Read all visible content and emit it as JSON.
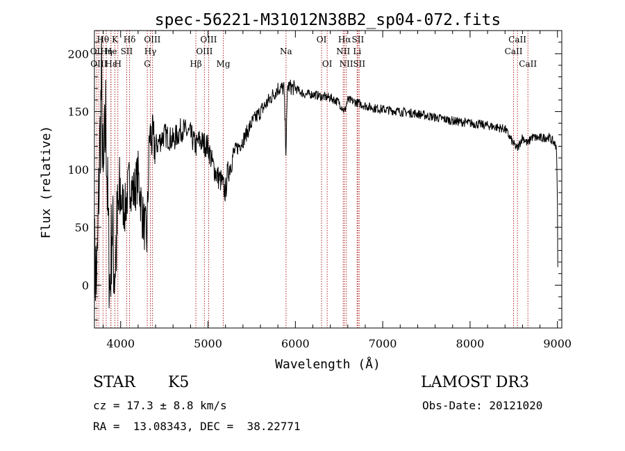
{
  "chart_data": {
    "type": "line",
    "title": "spec-56221-M31012N38B2_sp04-072.fits",
    "xlabel": "Wavelength (Å)",
    "ylabel": "Flux (relative)",
    "xlim": [
      3700,
      9050
    ],
    "ylim": [
      -37,
      220
    ],
    "x_ticks": [
      4000,
      5000,
      6000,
      7000,
      8000,
      9000
    ],
    "y_ticks": [
      0,
      50,
      100,
      150,
      200
    ],
    "grid": false,
    "line_color": "#000000",
    "spectral_line_color": "#b22222",
    "spectrum_anchors": [
      [
        3700,
        20
      ],
      [
        3730,
        5
      ],
      [
        3760,
        115
      ],
      [
        3780,
        175
      ],
      [
        3800,
        80
      ],
      [
        3830,
        150
      ],
      [
        3860,
        40
      ],
      [
        3880,
        -5
      ],
      [
        3900,
        55
      ],
      [
        3930,
        10
      ],
      [
        3970,
        60
      ],
      [
        4000,
        75
      ],
      [
        4050,
        65
      ],
      [
        4100,
        90
      ],
      [
        4150,
        80
      ],
      [
        4200,
        95
      ],
      [
        4250,
        60
      ],
      [
        4300,
        40
      ],
      [
        4330,
        130
      ],
      [
        4400,
        120
      ],
      [
        4500,
        130
      ],
      [
        4600,
        125
      ],
      [
        4700,
        135
      ],
      [
        4800,
        130
      ],
      [
        4860,
        120
      ],
      [
        4900,
        125
      ],
      [
        5000,
        120
      ],
      [
        5050,
        105
      ],
      [
        5100,
        95
      ],
      [
        5150,
        90
      ],
      [
        5200,
        80
      ],
      [
        5220,
        95
      ],
      [
        5300,
        115
      ],
      [
        5400,
        125
      ],
      [
        5500,
        140
      ],
      [
        5600,
        150
      ],
      [
        5700,
        160
      ],
      [
        5800,
        170
      ],
      [
        5870,
        170
      ],
      [
        5893,
        115
      ],
      [
        5910,
        172
      ],
      [
        6000,
        170
      ],
      [
        6100,
        165
      ],
      [
        6200,
        165
      ],
      [
        6300,
        163
      ],
      [
        6400,
        162
      ],
      [
        6500,
        158
      ],
      [
        6563,
        150
      ],
      [
        6600,
        160
      ],
      [
        6700,
        158
      ],
      [
        6800,
        155
      ],
      [
        6900,
        153
      ],
      [
        7000,
        152
      ],
      [
        7200,
        150
      ],
      [
        7400,
        148
      ],
      [
        7600,
        145
      ],
      [
        7800,
        142
      ],
      [
        8000,
        140
      ],
      [
        8200,
        138
      ],
      [
        8400,
        135
      ],
      [
        8498,
        122
      ],
      [
        8542,
        118
      ],
      [
        8600,
        128
      ],
      [
        8662,
        122
      ],
      [
        8700,
        128
      ],
      [
        8800,
        127
      ],
      [
        8900,
        128
      ],
      [
        8950,
        124
      ],
      [
        8990,
        120
      ],
      [
        9000,
        70
      ],
      [
        9005,
        2
      ]
    ],
    "spectral_lines": [
      {
        "label": "Hθ",
        "wavelength": 3798,
        "row": 0
      },
      {
        "label": "OII",
        "wavelength": 3727,
        "row": 1
      },
      {
        "label": "Hη",
        "wavelength": 3835,
        "row": 1
      },
      {
        "label": "OIII",
        "wavelength": 3750,
        "row": 2
      },
      {
        "label": "Hε",
        "wavelength": 3889,
        "row": 2
      },
      {
        "label": "K",
        "wavelength": 3934,
        "row": 0
      },
      {
        "label": "He",
        "wavelength": 3888,
        "row": 1
      },
      {
        "label": "H",
        "wavelength": 3968,
        "row": 2
      },
      {
        "label": "SII",
        "wavelength": 4069,
        "row": 1
      },
      {
        "label": "Hδ",
        "wavelength": 4102,
        "row": 0
      },
      {
        "label": "OIII",
        "wavelength": 4363,
        "row": 0
      },
      {
        "label": "Hγ",
        "wavelength": 4340,
        "row": 1
      },
      {
        "label": "G",
        "wavelength": 4305,
        "row": 2
      },
      {
        "label": "OIII",
        "wavelength": 5007,
        "row": 0
      },
      {
        "label": "OIII",
        "wavelength": 4959,
        "row": 1
      },
      {
        "label": "Hβ",
        "wavelength": 4861,
        "row": 2
      },
      {
        "label": "Mg",
        "wavelength": 5175,
        "row": 2
      },
      {
        "label": "Na",
        "wavelength": 5893,
        "row": 1
      },
      {
        "label": "OI",
        "wavelength": 6300,
        "row": 0
      },
      {
        "label": "OI",
        "wavelength": 6364,
        "row": 2
      },
      {
        "label": "Hα",
        "wavelength": 6563,
        "row": 0
      },
      {
        "label": "SII",
        "wavelength": 6716,
        "row": 0
      },
      {
        "label": "NII",
        "wavelength": 6548,
        "row": 1
      },
      {
        "label": "Li",
        "wavelength": 6707,
        "row": 1
      },
      {
        "label": "NII",
        "wavelength": 6583,
        "row": 2
      },
      {
        "label": "SII",
        "wavelength": 6731,
        "row": 2
      },
      {
        "label": "CaII",
        "wavelength": 8542,
        "row": 0
      },
      {
        "label": "CaII",
        "wavelength": 8498,
        "row": 1
      },
      {
        "label": "CaII",
        "wavelength": 8662,
        "row": 2
      }
    ]
  },
  "info": {
    "object_class": "STAR",
    "subclass": "K5",
    "survey": "LAMOST DR3",
    "cz": "cz = 17.3 ± 8.8 km/s",
    "obs_date": "Obs-Date: 20121020",
    "coords": "RA =  13.08343, DEC =  38.22771"
  }
}
